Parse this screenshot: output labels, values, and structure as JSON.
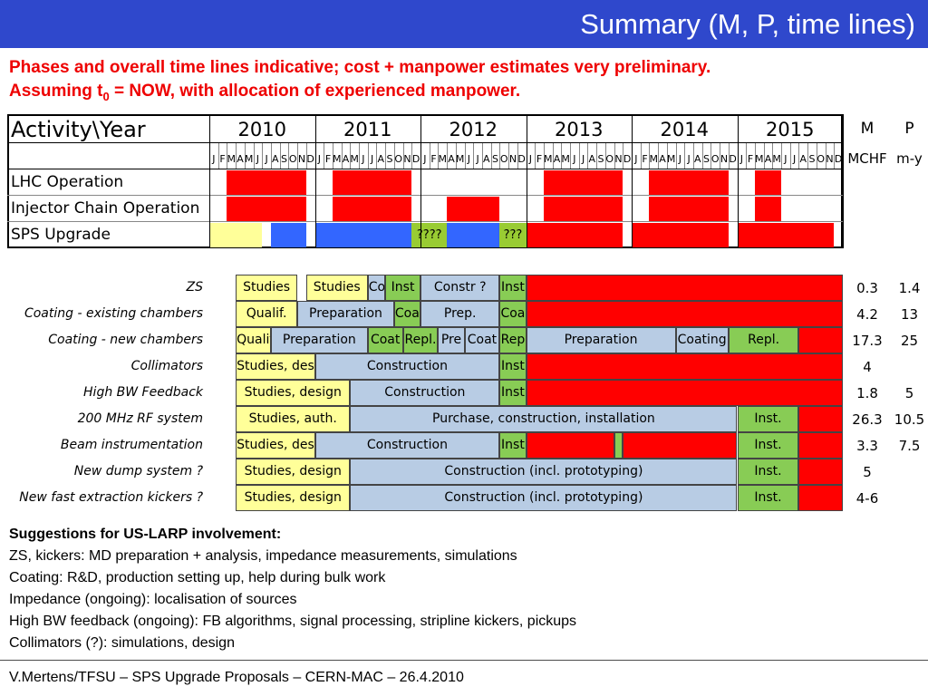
{
  "header": {
    "title": "Summary (M, P, time lines)"
  },
  "subtitle": {
    "line1": "Phases and overall time lines indicative; cost + manpower estimates very preliminary.",
    "line2_prefix": "Assuming t",
    "line2_sub": "0",
    "line2_suffix": " = NOW, with allocation of experienced manpower."
  },
  "colors": {
    "red": "#ff0000",
    "blue": "#3366ff",
    "yellow": "#ffff99",
    "green": "#99cc33",
    "lightblue": "#b8cce4",
    "lightgreen": "#88cc55",
    "header_bar": "#2f48cc"
  },
  "timeline": {
    "corner": "Activity\\Year",
    "years": [
      "2010",
      "2011",
      "2012",
      "2013",
      "2014",
      "2015"
    ],
    "months": [
      "J",
      "F",
      "M",
      "A",
      "M",
      "J",
      "J",
      "A",
      "S",
      "O",
      "N",
      "D"
    ],
    "m_header": "M",
    "p_header": "P",
    "m_unit": "MCHF",
    "p_unit": "m-y",
    "top_rows": [
      {
        "label": "LHC Operation",
        "bars": [
          {
            "from": 2,
            "to": 11,
            "color": "red"
          },
          {
            "from": 14,
            "to": 23,
            "color": "red"
          },
          {
            "from": 38,
            "to": 47,
            "color": "red"
          },
          {
            "from": 50,
            "to": 59,
            "color": "red"
          },
          {
            "from": 62,
            "to": 65,
            "color": "red"
          }
        ]
      },
      {
        "label": "Injector Chain Operation",
        "bars": [
          {
            "from": 2,
            "to": 11,
            "color": "red"
          },
          {
            "from": 14,
            "to": 23,
            "color": "red"
          },
          {
            "from": 27,
            "to": 33,
            "color": "red"
          },
          {
            "from": 38,
            "to": 47,
            "color": "red"
          },
          {
            "from": 50,
            "to": 59,
            "color": "red"
          },
          {
            "from": 62,
            "to": 65,
            "color": "red"
          }
        ]
      },
      {
        "label": "SPS Upgrade",
        "bars": [
          {
            "from": 0,
            "to": 6,
            "color": "yellow"
          },
          {
            "from": 7,
            "to": 11,
            "color": "blue"
          },
          {
            "from": 12,
            "to": 23,
            "color": "blue"
          },
          {
            "from": 23,
            "to": 27,
            "color": "green",
            "text": "????"
          },
          {
            "from": 27,
            "to": 33,
            "color": "blue"
          },
          {
            "from": 33,
            "to": 36,
            "color": "green",
            "text": "???"
          },
          {
            "from": 36,
            "to": 47,
            "color": "red"
          },
          {
            "from": 48,
            "to": 59,
            "color": "red"
          },
          {
            "from": 60,
            "to": 71,
            "color": "red"
          }
        ]
      }
    ],
    "activities": [
      {
        "label": "ZS",
        "m": "0.3",
        "p": "1.4",
        "bars": [
          {
            "from": 3,
            "to": 10,
            "color": "yellow",
            "text": "Studies"
          },
          {
            "from": 11,
            "to": 18,
            "color": "yellow",
            "text": "Studies"
          },
          {
            "from": 18,
            "to": 20,
            "color": "lightblue",
            "text": "Co"
          },
          {
            "from": 20,
            "to": 24,
            "color": "lightgreen",
            "text": "Inst"
          },
          {
            "from": 24,
            "to": 33,
            "color": "lightblue",
            "text": "Constr ?"
          },
          {
            "from": 33,
            "to": 36,
            "color": "lightgreen",
            "text": "Inst"
          },
          {
            "from": 36,
            "to": 72,
            "color": "red"
          }
        ]
      },
      {
        "label": "Coating - existing chambers",
        "m": "4.2",
        "p": "13",
        "bars": [
          {
            "from": 3,
            "to": 10,
            "color": "yellow",
            "text": "Qualif."
          },
          {
            "from": 10,
            "to": 21,
            "color": "lightblue",
            "text": "Preparation"
          },
          {
            "from": 21,
            "to": 24,
            "color": "lightgreen",
            "text": "Coat"
          },
          {
            "from": 24,
            "to": 33,
            "color": "lightblue",
            "text": "Prep."
          },
          {
            "from": 33,
            "to": 36,
            "color": "lightgreen",
            "text": "Coa"
          },
          {
            "from": 36,
            "to": 72,
            "color": "red"
          }
        ]
      },
      {
        "label": "Coating - new chambers",
        "m": "17.3",
        "p": "25",
        "bars": [
          {
            "from": 3,
            "to": 7,
            "color": "yellow",
            "text": "Qualif."
          },
          {
            "from": 7,
            "to": 18,
            "color": "lightblue",
            "text": "Preparation"
          },
          {
            "from": 18,
            "to": 22,
            "color": "lightgreen",
            "text": "Coat"
          },
          {
            "from": 22,
            "to": 26,
            "color": "lightgreen",
            "text": "Repl."
          },
          {
            "from": 26,
            "to": 29,
            "color": "lightblue",
            "text": "Pre"
          },
          {
            "from": 29,
            "to": 33,
            "color": "lightblue",
            "text": "Coat"
          },
          {
            "from": 33,
            "to": 36,
            "color": "lightgreen",
            "text": "Rep"
          },
          {
            "from": 36,
            "to": 53,
            "color": "lightblue",
            "text": "Preparation"
          },
          {
            "from": 53,
            "to": 59,
            "color": "lightblue",
            "text": "Coating"
          },
          {
            "from": 59,
            "to": 67,
            "color": "lightgreen",
            "text": "Repl."
          },
          {
            "from": 67,
            "to": 72,
            "color": "red"
          }
        ]
      },
      {
        "label": "Collimators",
        "m": "4",
        "p": "",
        "bars": [
          {
            "from": 3,
            "to": 12,
            "color": "yellow",
            "text": "Studies, des."
          },
          {
            "from": 12,
            "to": 33,
            "color": "lightblue",
            "text": "Construction"
          },
          {
            "from": 33,
            "to": 36,
            "color": "lightgreen",
            "text": "Inst"
          },
          {
            "from": 36,
            "to": 72,
            "color": "red"
          }
        ]
      },
      {
        "label": "High BW Feedback",
        "m": "1.8",
        "p": "5",
        "bars": [
          {
            "from": 3,
            "to": 16,
            "color": "yellow",
            "text": "Studies, design"
          },
          {
            "from": 16,
            "to": 33,
            "color": "lightblue",
            "text": "Construction"
          },
          {
            "from": 33,
            "to": 36,
            "color": "lightgreen",
            "text": "Inst"
          },
          {
            "from": 36,
            "to": 72,
            "color": "red"
          }
        ]
      },
      {
        "label": "200 MHz RF system",
        "m": "26.3",
        "p": "10.5",
        "bars": [
          {
            "from": 3,
            "to": 16,
            "color": "yellow",
            "text": "Studies, auth."
          },
          {
            "from": 16,
            "to": 60,
            "color": "lightblue",
            "text": "Purchase, construction, installation"
          },
          {
            "from": 60,
            "to": 67,
            "color": "lightgreen",
            "text": "Inst."
          },
          {
            "from": 67,
            "to": 72,
            "color": "red"
          }
        ]
      },
      {
        "label": "Beam instrumentation",
        "m": "3.3",
        "p": "7.5",
        "bars": [
          {
            "from": 3,
            "to": 12,
            "color": "yellow",
            "text": "Studies, des."
          },
          {
            "from": 12,
            "to": 33,
            "color": "lightblue",
            "text": "Construction"
          },
          {
            "from": 33,
            "to": 36,
            "color": "lightgreen",
            "text": "Inst"
          },
          {
            "from": 36,
            "to": 46,
            "color": "red"
          },
          {
            "from": 46,
            "to": 47,
            "color": "lightgreen"
          },
          {
            "from": 47,
            "to": 60,
            "color": "red"
          },
          {
            "from": 60,
            "to": 67,
            "color": "lightgreen",
            "text": "Inst."
          },
          {
            "from": 67,
            "to": 72,
            "color": "red"
          }
        ]
      },
      {
        "label": "New dump system ?",
        "m": "5",
        "p": "",
        "bars": [
          {
            "from": 3,
            "to": 16,
            "color": "yellow",
            "text": "Studies, design"
          },
          {
            "from": 16,
            "to": 60,
            "color": "lightblue",
            "text": "Construction (incl. prototyping)"
          },
          {
            "from": 60,
            "to": 67,
            "color": "lightgreen",
            "text": "Inst."
          },
          {
            "from": 67,
            "to": 72,
            "color": "red"
          }
        ]
      },
      {
        "label": "New fast extraction kickers ?",
        "m": "4-6",
        "p": "",
        "bars": [
          {
            "from": 3,
            "to": 16,
            "color": "yellow",
            "text": "Studies, design"
          },
          {
            "from": 16,
            "to": 60,
            "color": "lightblue",
            "text": "Construction (incl. prototyping)"
          },
          {
            "from": 60,
            "to": 67,
            "color": "lightgreen",
            "text": "Inst."
          },
          {
            "from": 67,
            "to": 72,
            "color": "red"
          }
        ]
      }
    ]
  },
  "suggestions": {
    "heading": "Suggestions for US-LARP involvement:",
    "lines": [
      "ZS, kickers: MD preparation + analysis, impedance measurements, simulations",
      "Coating: R&D, production setting up, help during bulk work",
      "Impedance (ongoing): localisation of sources",
      "High BW feedback (ongoing): FB algorithms, signal processing, stripline kickers, pickups",
      "Collimators (?): simulations, design"
    ]
  },
  "footer": {
    "text": "V.Mertens/TFSU – SPS Upgrade Proposals – CERN-MAC – 26.4.2010"
  }
}
